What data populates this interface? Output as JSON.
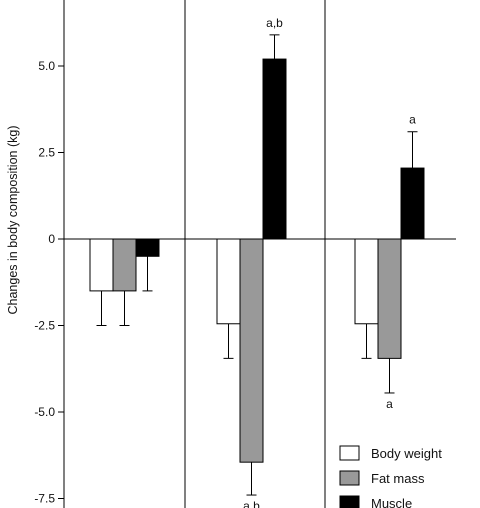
{
  "chart_data": {
    "type": "bar",
    "title": "",
    "xlabel": "",
    "ylabel": "Changes in body composition (kg)",
    "ylim": [
      -7.5,
      6.5
    ],
    "yticks": [
      5.0,
      2.5,
      0,
      -2.5,
      -5.0,
      -7.5
    ],
    "ytick_labels": [
      "5.0",
      "2.5",
      "0",
      "-2.5",
      "-5.0",
      "-7.5"
    ],
    "grid": false,
    "legend_position": "bottom-right",
    "groups": [
      "",
      "",
      ""
    ],
    "series": [
      {
        "name": "Body weight",
        "color": "#ffffff",
        "values": [
          -1.5,
          -2.45,
          -2.45
        ],
        "errors": [
          1.0,
          1.0,
          1.0
        ]
      },
      {
        "name": "Fat mass",
        "color": "#999999",
        "values": [
          -1.5,
          -6.45,
          -3.45
        ],
        "errors": [
          1.0,
          0.95,
          1.0
        ]
      },
      {
        "name": "Muscle",
        "color": "#000000",
        "values": [
          -0.5,
          5.2,
          2.05
        ],
        "errors": [
          1.0,
          0.7,
          1.05
        ]
      }
    ],
    "annotations": [
      {
        "group": 1,
        "series": 2,
        "text": "a,b",
        "side": "top"
      },
      {
        "group": 1,
        "series": 1,
        "text": "a,b",
        "side": "bottom"
      },
      {
        "group": 2,
        "series": 2,
        "text": "a",
        "side": "top"
      },
      {
        "group": 2,
        "series": 1,
        "text": "a",
        "side": "bottom"
      }
    ]
  }
}
